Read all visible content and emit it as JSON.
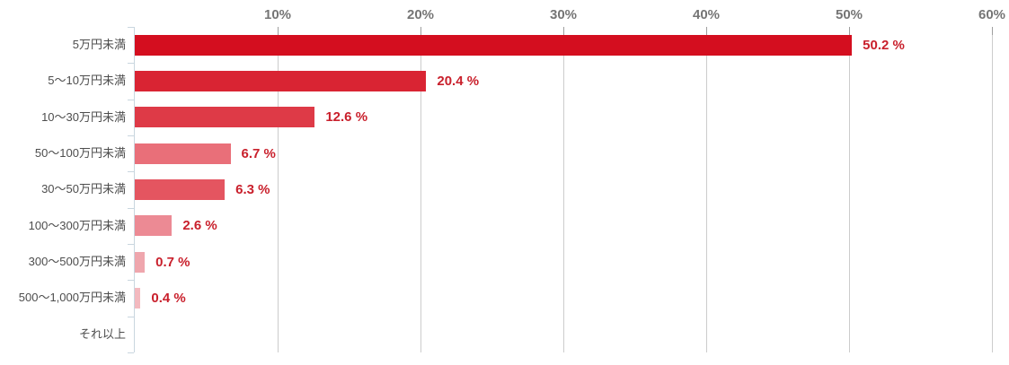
{
  "chart_data": {
    "type": "bar",
    "orientation": "horizontal",
    "title": "",
    "categories": [
      "5万円未満",
      "5〜10万円未満",
      "10〜30万円未満",
      "50〜100万円未満",
      "30〜50万円未満",
      "100〜300万円未満",
      "300〜500万円未満",
      "500〜1,000万円未満",
      "それ以上"
    ],
    "values": [
      50.2,
      20.4,
      12.6,
      6.7,
      6.3,
      2.6,
      0.7,
      0.4,
      0
    ],
    "value_labels": [
      "50.2 %",
      "20.4 %",
      "12.6 %",
      "6.7 %",
      "6.3 %",
      "2.6 %",
      "0.7 %",
      "0.4 %",
      ""
    ],
    "bar_colors": [
      "#d40e1f",
      "#d92433",
      "#de3a47",
      "#e96f79",
      "#e45560",
      "#ec8a94",
      "#efa6ad",
      "#f3b9bf",
      null
    ],
    "x_axis": {
      "position": "top",
      "unit": "%",
      "min": 0,
      "max": 60,
      "ticks": [
        {
          "label": "10%",
          "value": 10
        },
        {
          "label": "20%",
          "value": 20
        },
        {
          "label": "30%",
          "value": 30
        },
        {
          "label": "40%",
          "value": 40
        },
        {
          "label": "50%",
          "value": 50
        },
        {
          "label": "60%",
          "value": 60
        }
      ]
    },
    "grid": true,
    "legend": false,
    "style_colors": {
      "value_label": "#c9202c",
      "gridline": "#cccccc",
      "xtick_mark": "#9e9e9e",
      "xtick_label": "#757575",
      "category_label": "#4d4d4d",
      "y_axis_line": "#c9d6df",
      "background": "#ffffff"
    }
  }
}
